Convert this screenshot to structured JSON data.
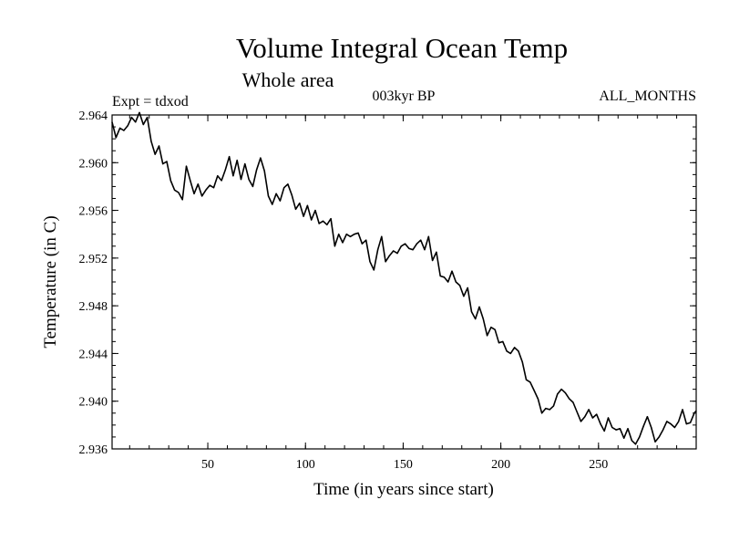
{
  "chart_data": {
    "type": "line",
    "title": "Volume Integral Ocean Temp",
    "subtitle": "Whole area",
    "header_left": "Expt = tdxod",
    "header_center": "003kyr BP",
    "header_right": "ALL_MONTHS",
    "xlabel": "Time (in years since start)",
    "ylabel": "Temperature (in C)",
    "xlim": [
      1,
      300
    ],
    "ylim": [
      2.936,
      2.964
    ],
    "xticks": [
      50,
      100,
      150,
      200,
      250
    ],
    "yticks": [
      2.936,
      2.94,
      2.944,
      2.948,
      2.952,
      2.956,
      2.96,
      2.964
    ],
    "ytick_labels": [
      "2.936",
      "2.940",
      "2.944",
      "2.948",
      "2.952",
      "2.956",
      "2.960",
      "2.964"
    ],
    "x_minor_step": 10,
    "y_minor_step": 0.001,
    "line_color": "#000000",
    "series": [
      {
        "x": [
          1,
          3,
          5,
          7,
          9,
          11,
          13,
          15,
          17,
          19,
          21,
          23,
          25,
          27,
          29,
          31,
          33,
          35,
          37,
          39,
          41,
          43,
          45,
          47,
          49,
          51,
          53,
          55,
          57,
          59,
          61,
          63,
          65,
          67,
          69,
          71,
          73,
          75,
          77,
          79,
          81,
          83,
          85,
          87,
          89,
          91,
          93,
          95,
          97,
          99,
          101,
          103,
          105,
          107,
          109,
          111,
          113,
          115,
          117,
          119,
          121,
          123,
          125,
          127,
          129,
          131,
          133,
          135,
          137,
          139,
          141,
          143,
          145,
          147,
          149,
          151,
          153,
          155,
          157,
          159,
          161,
          163,
          165,
          167,
          169,
          171,
          173,
          175,
          177,
          179,
          181,
          183,
          185,
          187,
          189,
          191,
          193,
          195,
          197,
          199,
          201,
          203,
          205,
          207,
          209,
          211,
          213,
          215,
          217,
          219,
          221,
          223,
          225,
          227,
          229,
          231,
          233,
          235,
          237,
          239,
          241,
          243,
          245,
          247,
          249,
          251,
          253,
          255,
          257,
          259,
          261,
          263,
          265,
          267,
          269,
          271,
          273,
          275,
          277,
          279,
          281,
          283,
          285,
          287,
          289,
          291,
          293,
          295,
          297,
          299,
          300
        ],
        "values": [
          2.9634,
          2.9621,
          2.9629,
          2.9627,
          2.9631,
          2.9638,
          2.9634,
          2.9642,
          2.9632,
          2.9638,
          2.9618,
          2.9607,
          2.9614,
          2.9599,
          2.9601,
          2.9585,
          2.9577,
          2.9575,
          2.9569,
          2.9597,
          2.9585,
          2.9574,
          2.9582,
          2.9572,
          2.9577,
          2.9581,
          2.9579,
          2.9589,
          2.9585,
          2.9594,
          2.9605,
          2.9589,
          2.9602,
          2.9586,
          2.9599,
          2.9586,
          2.958,
          2.9594,
          2.9604,
          2.9593,
          2.9572,
          2.9565,
          2.9574,
          2.9568,
          2.9579,
          2.9582,
          2.9573,
          2.9561,
          2.9566,
          2.9555,
          2.9564,
          2.9552,
          2.956,
          2.9549,
          2.9551,
          2.9548,
          2.9553,
          2.953,
          2.954,
          2.9533,
          2.954,
          2.9538,
          2.954,
          2.9541,
          2.9532,
          2.9535,
          2.9517,
          2.951,
          2.9527,
          2.9538,
          2.9517,
          2.9522,
          2.9526,
          2.9524,
          2.953,
          2.9532,
          2.9528,
          2.9527,
          2.9532,
          2.9535,
          2.9527,
          2.9538,
          2.9518,
          2.9525,
          2.9505,
          2.9504,
          2.95,
          2.9509,
          2.95,
          2.9497,
          2.9488,
          2.9495,
          2.9475,
          2.9469,
          2.9479,
          2.9469,
          2.9455,
          2.9462,
          2.946,
          2.9449,
          2.945,
          2.9442,
          2.944,
          2.9445,
          2.9442,
          2.9433,
          2.9418,
          2.9416,
          2.9409,
          2.9402,
          2.939,
          2.9394,
          2.9393,
          2.9396,
          2.9406,
          2.941,
          2.9407,
          2.9402,
          2.9399,
          2.9391,
          2.9383,
          2.9387,
          2.9393,
          2.9386,
          2.9389,
          2.9381,
          2.9375,
          2.9386,
          2.9378,
          2.9376,
          2.9377,
          2.9369,
          2.9377,
          2.9367,
          2.9364,
          2.937,
          2.9379,
          2.9387,
          2.9378,
          2.9366,
          2.937,
          2.9376,
          2.9383,
          2.9381,
          2.9378,
          2.9383,
          2.9393,
          2.9381,
          2.9382,
          2.939,
          2.9392
        ]
      }
    ]
  }
}
